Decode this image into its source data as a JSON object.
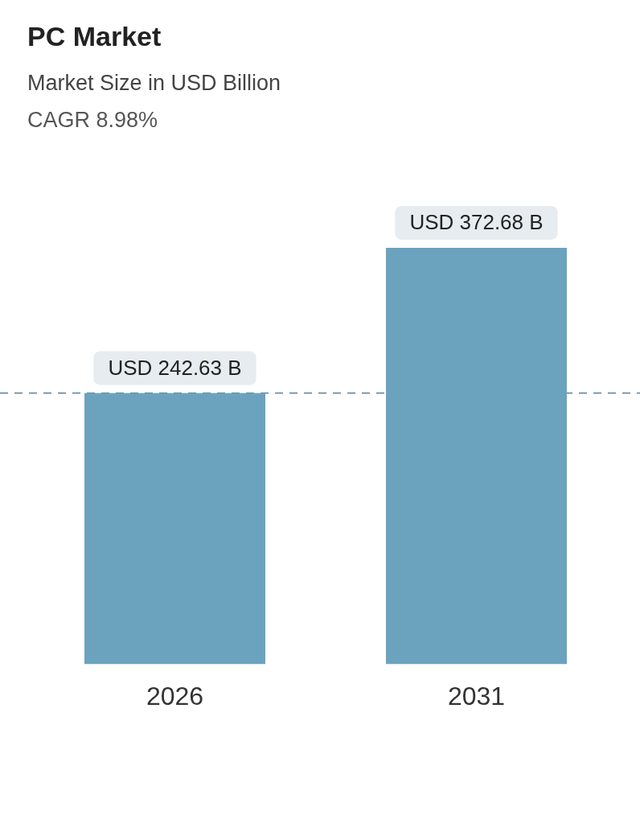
{
  "chart_data": {
    "type": "bar",
    "title": "PC Market",
    "subtitle": "Market Size in USD Billion",
    "annotations": [
      "CAGR 8.98%"
    ],
    "categories": [
      "2026",
      "2031"
    ],
    "values": [
      242.63,
      372.68
    ],
    "value_labels": [
      "USD 242.63 B",
      "USD 372.68 B"
    ],
    "color": "#6ba3be",
    "ref_lines": [
      {
        "axis": "y",
        "value": 242.63,
        "color": "#5a7f99",
        "line_style": "dashed"
      }
    ],
    "grid": false,
    "legend": false
  }
}
